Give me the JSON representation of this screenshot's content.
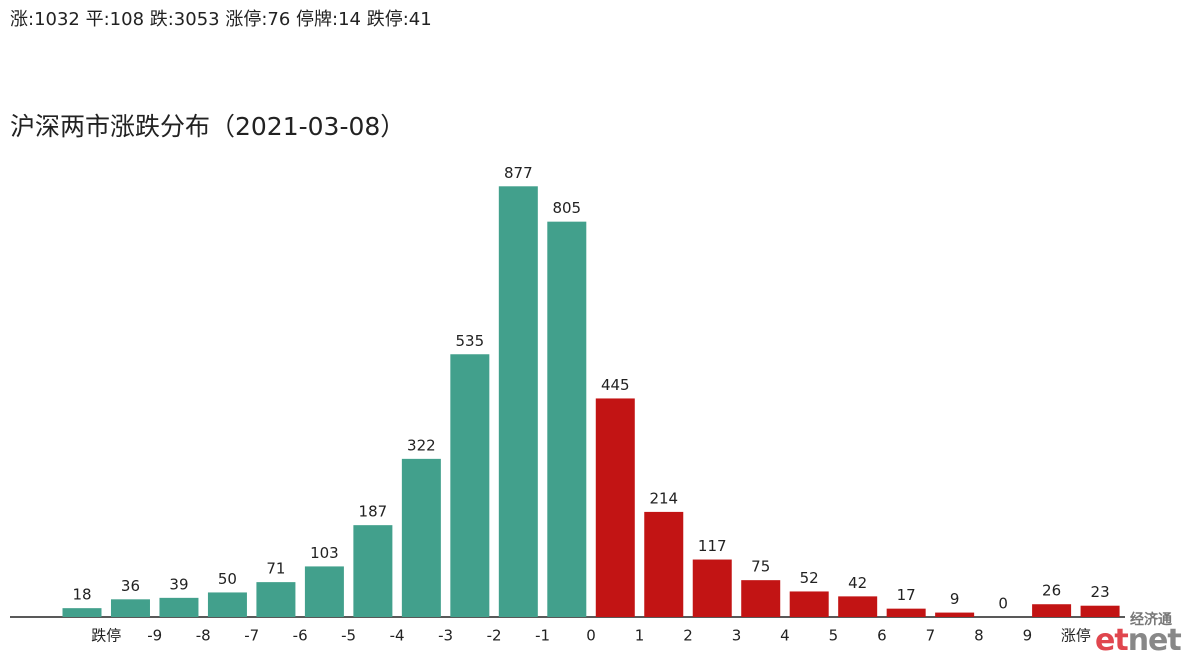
{
  "chart_data": {
    "type": "bar",
    "subtitle": "涨:1032 平:108 跌:3053 涨停:76 停牌:14 跌停:41",
    "title": "沪深两市涨跌分布（2021-03-08）",
    "values": [
      18,
      36,
      39,
      50,
      71,
      103,
      187,
      322,
      535,
      877,
      805,
      445,
      214,
      117,
      75,
      52,
      42,
      17,
      9,
      0,
      26,
      23
    ],
    "colors": [
      "#42a08c",
      "#42a08c",
      "#42a08c",
      "#42a08c",
      "#42a08c",
      "#42a08c",
      "#42a08c",
      "#42a08c",
      "#42a08c",
      "#42a08c",
      "#42a08c",
      "#c21414",
      "#c21414",
      "#c21414",
      "#c21414",
      "#c21414",
      "#c21414",
      "#c21414",
      "#c21414",
      "#c21414",
      "#c21414",
      "#c21414"
    ],
    "xticks": [
      "跌停",
      "-9",
      "-8",
      "-7",
      "-6",
      "-5",
      "-4",
      "-3",
      "-2",
      "-1",
      "0",
      "1",
      "2",
      "3",
      "4",
      "5",
      "6",
      "7",
      "8",
      "9",
      "涨停"
    ],
    "ylim": [
      0,
      900
    ],
    "watermark": {
      "top": "经济通",
      "left": "et",
      "right": "net"
    }
  }
}
